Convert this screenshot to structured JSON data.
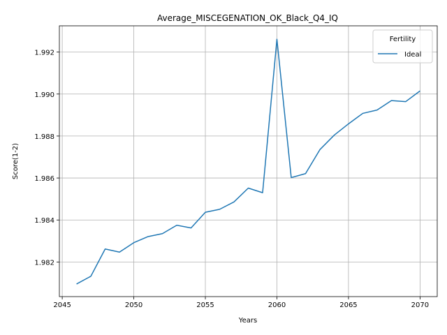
{
  "chart_data": {
    "type": "line",
    "title": "Average_MISCEGENATION_OK_Black_Q4_IQ",
    "xlabel": "Years",
    "ylabel": "Score(1-2)",
    "xlim": [
      2044.8,
      2071.2
    ],
    "ylim": [
      1.98035,
      1.99325
    ],
    "xticks": [
      2045,
      2050,
      2055,
      2060,
      2065,
      2070
    ],
    "xtick_labels": [
      "2045",
      "2050",
      "2055",
      "2060",
      "2065",
      "2070"
    ],
    "yticks": [
      1.982,
      1.984,
      1.986,
      1.988,
      1.99,
      1.992
    ],
    "ytick_labels": [
      "1.982",
      "1.984",
      "1.986",
      "1.988",
      "1.990",
      "1.992"
    ],
    "grid": true,
    "legend": {
      "title": "Fertility",
      "position": "top-right"
    },
    "series": [
      {
        "name": "Ideal",
        "color": "#1f77b4",
        "x": [
          2046,
          2047,
          2048,
          2049,
          2050,
          2051,
          2052,
          2053,
          2054,
          2055,
          2056,
          2057,
          2058,
          2059,
          2060,
          2061,
          2062,
          2063,
          2064,
          2065,
          2066,
          2067,
          2068,
          2069,
          2070
        ],
        "y": [
          1.98095,
          1.98132,
          1.98262,
          1.98247,
          1.98292,
          1.98321,
          1.98335,
          1.98375,
          1.98362,
          1.98437,
          1.98451,
          1.98486,
          1.98552,
          1.9853,
          1.99261,
          1.98602,
          1.98621,
          1.98735,
          1.98804,
          1.98858,
          1.98908,
          1.98924,
          1.98969,
          1.98964,
          1.99015
        ]
      }
    ]
  }
}
